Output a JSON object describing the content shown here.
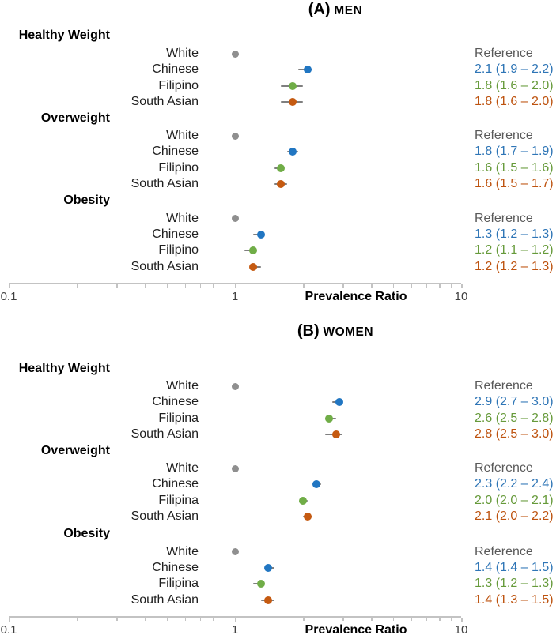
{
  "figure": {
    "colors": {
      "marker": {
        "reference": "#8f8f8f",
        "chinese": "#2176c2",
        "filipino": "#70ad47",
        "south_asian": "#c55a11"
      },
      "text": {
        "reference": "#595959",
        "chinese": "#2e75b6",
        "filipino": "#669a3a",
        "south_asian": "#bd520e"
      },
      "row_label": "#1f1f1f",
      "header_text": "#000000",
      "axis_line": "#c3c3c3",
      "tick_label": "#3f3f3f",
      "error_bar": "#7f7f7f"
    }
  },
  "chart_data": [
    {
      "type": "scatter",
      "panel": "A",
      "title_prefix": "(A)",
      "title_word": "MEN",
      "xlabel": "Prevalence Ratio",
      "xscale": "log",
      "xlim": [
        0.1,
        10
      ],
      "xticks": [
        0.1,
        1,
        10
      ],
      "xtick_labels": [
        "0.1",
        "1",
        "10"
      ],
      "sections": [
        {
          "label": "Healthy Weight",
          "rows": [
            {
              "group": "White",
              "series": "reference",
              "value": 1.0,
              "ci": null,
              "text": "Reference"
            },
            {
              "group": "Chinese",
              "series": "chinese",
              "value": 2.1,
              "ci": [
                1.9,
                2.2
              ],
              "text": "2.1 (1.9 – 2.2)"
            },
            {
              "group": "Filipino",
              "series": "filipino",
              "value": 1.8,
              "ci": [
                1.6,
                2.0
              ],
              "text": "1.8 (1.6 – 2.0)"
            },
            {
              "group": "South Asian",
              "series": "south_asian",
              "value": 1.8,
              "ci": [
                1.6,
                2.0
              ],
              "text": "1.8 (1.6 – 2.0)"
            }
          ]
        },
        {
          "label": "Overweight",
          "rows": [
            {
              "group": "White",
              "series": "reference",
              "value": 1.0,
              "ci": null,
              "text": "Reference"
            },
            {
              "group": "Chinese",
              "series": "chinese",
              "value": 1.8,
              "ci": [
                1.7,
                1.9
              ],
              "text": "1.8 (1.7 – 1.9)"
            },
            {
              "group": "Filipino",
              "series": "filipino",
              "value": 1.6,
              "ci": [
                1.5,
                1.6
              ],
              "text": "1.6 (1.5 – 1.6)"
            },
            {
              "group": "South Asian",
              "series": "south_asian",
              "value": 1.6,
              "ci": [
                1.5,
                1.7
              ],
              "text": "1.6 (1.5 – 1.7)"
            }
          ]
        },
        {
          "label": "Obesity",
          "rows": [
            {
              "group": "White",
              "series": "reference",
              "value": 1.0,
              "ci": null,
              "text": "Reference"
            },
            {
              "group": "Chinese",
              "series": "chinese",
              "value": 1.3,
              "ci": [
                1.2,
                1.3
              ],
              "text": "1.3 (1.2 – 1.3)"
            },
            {
              "group": "Filipino",
              "series": "filipino",
              "value": 1.2,
              "ci": [
                1.1,
                1.2
              ],
              "text": "1.2 (1.1 – 1.2)"
            },
            {
              "group": "South Asian",
              "series": "south_asian",
              "value": 1.2,
              "ci": [
                1.2,
                1.3
              ],
              "text": "1.2 (1.2 – 1.3)"
            }
          ]
        }
      ]
    },
    {
      "type": "scatter",
      "panel": "B",
      "title_prefix": "(B)",
      "title_word": "WOMEN",
      "xlabel": "Prevalence Ratio",
      "xscale": "log",
      "xlim": [
        0.1,
        10
      ],
      "xticks": [
        0.1,
        1,
        10
      ],
      "xtick_labels": [
        "0.1",
        "1",
        "10"
      ],
      "sections": [
        {
          "label": "Healthy Weight",
          "rows": [
            {
              "group": "White",
              "series": "reference",
              "value": 1.0,
              "ci": null,
              "text": "Reference"
            },
            {
              "group": "Chinese",
              "series": "chinese",
              "value": 2.9,
              "ci": [
                2.7,
                3.0
              ],
              "text": "2.9 (2.7 – 3.0)"
            },
            {
              "group": "Filipina",
              "series": "filipino",
              "value": 2.6,
              "ci": [
                2.5,
                2.8
              ],
              "text": "2.6 (2.5 – 2.8)"
            },
            {
              "group": "South Asian",
              "series": "south_asian",
              "value": 2.8,
              "ci": [
                2.5,
                3.0
              ],
              "text": "2.8 (2.5 – 3.0)"
            }
          ]
        },
        {
          "label": "Overweight",
          "rows": [
            {
              "group": "White",
              "series": "reference",
              "value": 1.0,
              "ci": null,
              "text": "Reference"
            },
            {
              "group": "Chinese",
              "series": "chinese",
              "value": 2.3,
              "ci": [
                2.2,
                2.4
              ],
              "text": "2.3 (2.2 – 2.4)"
            },
            {
              "group": "Filipina",
              "series": "filipino",
              "value": 2.0,
              "ci": [
                2.0,
                2.1
              ],
              "text": "2.0 (2.0 – 2.1)"
            },
            {
              "group": "South Asian",
              "series": "south_asian",
              "value": 2.1,
              "ci": [
                2.0,
                2.2
              ],
              "text": "2.1 (2.0 – 2.2)"
            }
          ]
        },
        {
          "label": "Obesity",
          "rows": [
            {
              "group": "White",
              "series": "reference",
              "value": 1.0,
              "ci": null,
              "text": "Reference"
            },
            {
              "group": "Chinese",
              "series": "chinese",
              "value": 1.4,
              "ci": [
                1.4,
                1.5
              ],
              "text": "1.4 (1.4 – 1.5)"
            },
            {
              "group": "Filipina",
              "series": "filipino",
              "value": 1.3,
              "ci": [
                1.2,
                1.3
              ],
              "text": "1.3 (1.2 – 1.3)"
            },
            {
              "group": "South Asian",
              "series": "south_asian",
              "value": 1.4,
              "ci": [
                1.3,
                1.5
              ],
              "text": "1.4 (1.3 – 1.5)"
            }
          ]
        }
      ]
    }
  ]
}
